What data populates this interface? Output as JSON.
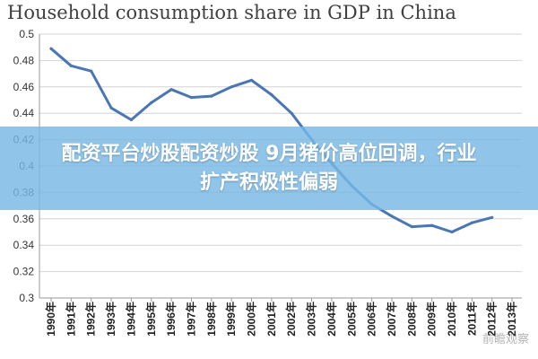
{
  "chart_data": {
    "type": "line",
    "title": "Household consumption share in GDP in China",
    "xlabel": "",
    "ylabel": "",
    "categories": [
      "1990年",
      "1991年",
      "1992年",
      "1993年",
      "1994年",
      "1995年",
      "1996年",
      "1997年",
      "1998年",
      "1999年",
      "2000年",
      "2001年",
      "2002年",
      "2003年",
      "2004年",
      "2005年",
      "2006年",
      "2007年",
      "2008年",
      "2009年",
      "2010年",
      "2011年",
      "2012年",
      "2013年"
    ],
    "series": [
      {
        "values": [
          0.489,
          0.476,
          0.472,
          0.444,
          0.435,
          0.448,
          0.458,
          0.452,
          0.453,
          0.46,
          0.465,
          0.454,
          0.44,
          0.42,
          0.402,
          0.385,
          0.371,
          0.362,
          0.354,
          0.355,
          0.35,
          0.357,
          0.361,
          null
        ]
      }
    ],
    "ylim": [
      0.3,
      0.5
    ],
    "yticks": [
      "0.5",
      "0.48",
      "0.46",
      "0.44",
      "0.42",
      "0.4",
      "0.38",
      "0.36",
      "0.34",
      "0.32",
      "0.3"
    ],
    "grid": true,
    "line_color": "#4a76b4"
  },
  "banner": {
    "line1": "配资平台炒股配资炒股 9月猪价高位回调，行业",
    "line2": "扩产积极性偏弱"
  },
  "watermark": "前瞻观察"
}
